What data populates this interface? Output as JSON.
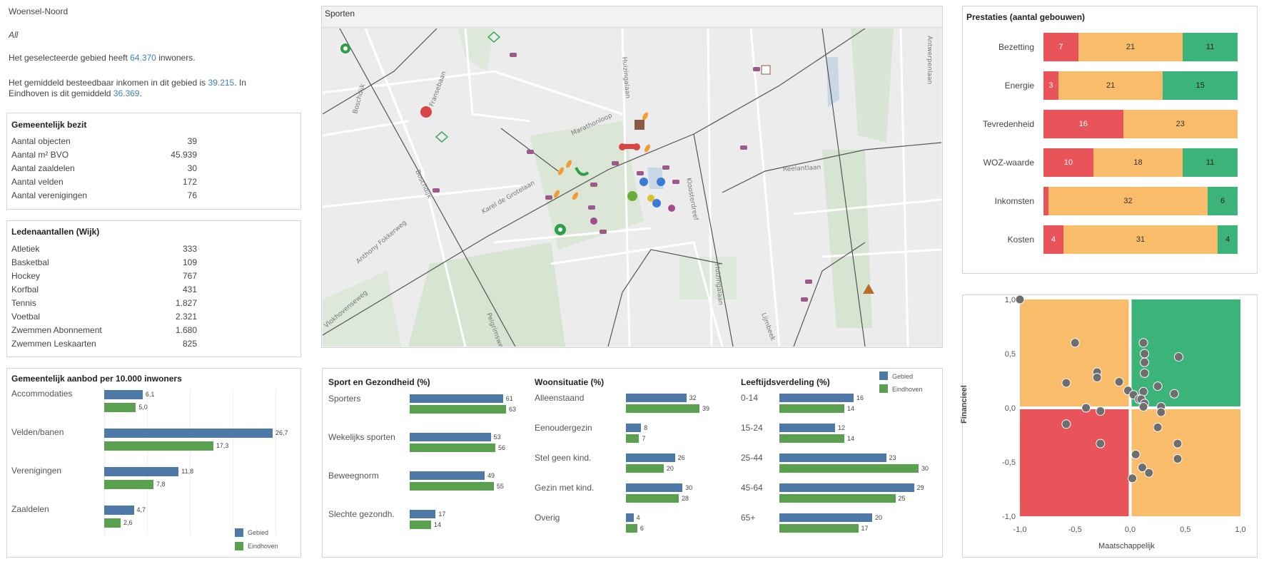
{
  "header": {
    "area": "Woensel-Noord",
    "filter": "All",
    "pop_pre": "Het geselecteerde gebied heeft",
    "pop_value": "64.370",
    "pop_post": "inwoners.",
    "income_pre": "Het gemiddeld besteedbaar inkomen in dit gebied is",
    "income_value": "39.215",
    "income_mid": ". In",
    "income_pre2": "Eindhoven is dit gemiddeld",
    "income_avg": "36.369",
    "income_end": "."
  },
  "bezit": {
    "title": "Gemeentelijk bezit",
    "rows": [
      {
        "label": "Aantal objecten",
        "value": "39"
      },
      {
        "label": "Aantal m² BVO",
        "value": "45.939"
      },
      {
        "label": "Aantal zaaldelen",
        "value": "30"
      },
      {
        "label": "Aantal velden",
        "value": "172"
      },
      {
        "label": "Aantal verenigingen",
        "value": "76"
      }
    ]
  },
  "leden": {
    "title": "Ledenaantallen (Wijk)",
    "rows": [
      {
        "label": "Atletiek",
        "value": "333"
      },
      {
        "label": "Basketbal",
        "value": "109"
      },
      {
        "label": "Hockey",
        "value": "767"
      },
      {
        "label": "Korfbal",
        "value": "431"
      },
      {
        "label": "Tennis",
        "value": "1.827"
      },
      {
        "label": "Voetbal",
        "value": "2.321"
      },
      {
        "label": "Zwemmen Abonnement",
        "value": "1.680"
      },
      {
        "label": "Zwemmen Leskaarten",
        "value": "825"
      }
    ]
  },
  "aanbod": {
    "title": "Gemeentelijk aanbod per 10.000 inwoners",
    "legend_gebied": "Gebied",
    "legend_eindhoven": "Eindhoven",
    "rows": [
      {
        "label": "Accommodaties",
        "gebied": 6.1,
        "eindhoven": 5.0,
        "gebied_label": "6,1",
        "eindhoven_label": "5,0"
      },
      {
        "label": "Velden/banen",
        "gebied": 26.7,
        "eindhoven": 17.3,
        "gebied_label": "26,7",
        "eindhoven_label": "17,3"
      },
      {
        "label": "Verenigingen",
        "gebied": 11.8,
        "eindhoven": 7.8,
        "gebied_label": "11,8",
        "eindhoven_label": "7,8"
      },
      {
        "label": "Zaaldelen",
        "gebied": 4.7,
        "eindhoven": 2.6,
        "gebied_label": "4,7",
        "eindhoven_label": "2,6"
      }
    ]
  },
  "map": {
    "title": "Sporten",
    "streets": [
      "Fransebaan",
      "Boschdijk",
      "Marathonloop",
      "Huizingalaan",
      "Boschdijk",
      "Anthony Fokkerweg",
      "Karel de Grotelaan",
      "Reelantlaan",
      "Antwerpenlaan",
      "Huizingalaan",
      "Lijmbeek",
      "Kloosterdreef",
      "Vlokhovenseweg",
      "Pelgrimsweg"
    ]
  },
  "health": {
    "sport": {
      "title": "Sport en Gezondheid (%)",
      "rows": [
        {
          "label": "Sporters",
          "gebied": 61,
          "eindhoven": 63
        },
        {
          "label": "Wekelijks sporten",
          "gebied": 53,
          "eindhoven": 56
        },
        {
          "label": "Beweegnorm",
          "gebied": 49,
          "eindhoven": 55
        },
        {
          "label": "Slechte gezondh.",
          "gebied": 17,
          "eindhoven": 14
        }
      ]
    },
    "woon": {
      "title": "Woonsituatie (%)",
      "rows": [
        {
          "label": "Alleenstaand",
          "gebied": 32,
          "eindhoven": 39
        },
        {
          "label": "Eenoudergezin",
          "gebied": 8,
          "eindhoven": 7
        },
        {
          "label": "Stel geen kind.",
          "gebied": 26,
          "eindhoven": 20
        },
        {
          "label": "Gezin met kind.",
          "gebied": 30,
          "eindhoven": 28
        },
        {
          "label": "Overig",
          "gebied": 4,
          "eindhoven": 6
        }
      ]
    },
    "leeftijd": {
      "title": "Leeftijdsverdeling (%)",
      "rows": [
        {
          "label": "0-14",
          "gebied": 16,
          "eindhoven": 14
        },
        {
          "label": "15-24",
          "gebied": 12,
          "eindhoven": 14
        },
        {
          "label": "25-44",
          "gebied": 23,
          "eindhoven": 30
        },
        {
          "label": "45-64",
          "gebied": 29,
          "eindhoven": 25
        },
        {
          "label": "65+",
          "gebied": 20,
          "eindhoven": 17
        }
      ]
    },
    "legend_gebied": "Gebied",
    "legend_eindhoven": "Eindhoven"
  },
  "prestaties": {
    "title": "Prestaties (aantal gebouwen)",
    "rows": [
      {
        "label": "Bezetting",
        "red": 7,
        "orange": 21,
        "green": 11
      },
      {
        "label": "Energie",
        "red": 3,
        "orange": 21,
        "green": 15
      },
      {
        "label": "Tevredenheid",
        "red": 16,
        "orange": 23,
        "green": 0
      },
      {
        "label": "WOZ-waarde",
        "red": 10,
        "orange": 18,
        "green": 11
      },
      {
        "label": "Inkomsten",
        "red": 1,
        "orange": 32,
        "green": 6
      },
      {
        "label": "Kosten",
        "red": 4,
        "orange": 31,
        "green": 4
      }
    ],
    "colors": {
      "red": "#e8545a",
      "orange": "#f8bc6b",
      "green": "#3bb379"
    }
  },
  "chart_data": {
    "type": "scatter",
    "xlabel": "Maatschappelijk",
    "ylabel": "Financieel",
    "xlim": [
      -1.0,
      1.0
    ],
    "ylim": [
      -1.0,
      1.0
    ],
    "x_ticks": [
      "-1,0",
      "-0,5",
      "0,0",
      "0,5",
      "1,0"
    ],
    "y_ticks": [
      "1,0",
      "0,5",
      "0,0",
      "-0,5",
      "-1,0"
    ],
    "quadrant_colors": {
      "top_left": "#f8bc6b",
      "top_right": "#3bb379",
      "bottom_left": "#e8545a",
      "bottom_right": "#f8bc6b"
    },
    "points": [
      {
        "x": -1.0,
        "y": 1.0
      },
      {
        "x": -0.5,
        "y": 0.6
      },
      {
        "x": -0.3,
        "y": 0.33
      },
      {
        "x": -0.3,
        "y": 0.28
      },
      {
        "x": -0.58,
        "y": 0.23
      },
      {
        "x": -0.1,
        "y": 0.24
      },
      {
        "x": -0.02,
        "y": 0.16
      },
      {
        "x": 0.03,
        "y": 0.12
      },
      {
        "x": 0.08,
        "y": 0.08
      },
      {
        "x": 0.12,
        "y": 0.6
      },
      {
        "x": 0.13,
        "y": 0.5
      },
      {
        "x": 0.13,
        "y": 0.42
      },
      {
        "x": 0.13,
        "y": 0.32
      },
      {
        "x": 0.44,
        "y": 0.47
      },
      {
        "x": 0.25,
        "y": 0.2
      },
      {
        "x": 0.12,
        "y": 0.15
      },
      {
        "x": 0.4,
        "y": 0.13
      },
      {
        "x": 0.1,
        "y": 0.08
      },
      {
        "x": 0.13,
        "y": 0.04
      },
      {
        "x": 0.28,
        "y": 0.01
      },
      {
        "x": 0.28,
        "y": -0.04
      },
      {
        "x": 0.12,
        "y": 0.01
      },
      {
        "x": -0.4,
        "y": 0.0
      },
      {
        "x": -0.27,
        "y": -0.03
      },
      {
        "x": -0.58,
        "y": -0.15
      },
      {
        "x": 0.25,
        "y": -0.18
      },
      {
        "x": -0.27,
        "y": -0.33
      },
      {
        "x": 0.43,
        "y": -0.33
      },
      {
        "x": 0.43,
        "y": -0.47
      },
      {
        "x": 0.05,
        "y": -0.43
      },
      {
        "x": 0.11,
        "y": -0.55
      },
      {
        "x": 0.17,
        "y": -0.6
      },
      {
        "x": 0.02,
        "y": -0.65
      }
    ]
  }
}
